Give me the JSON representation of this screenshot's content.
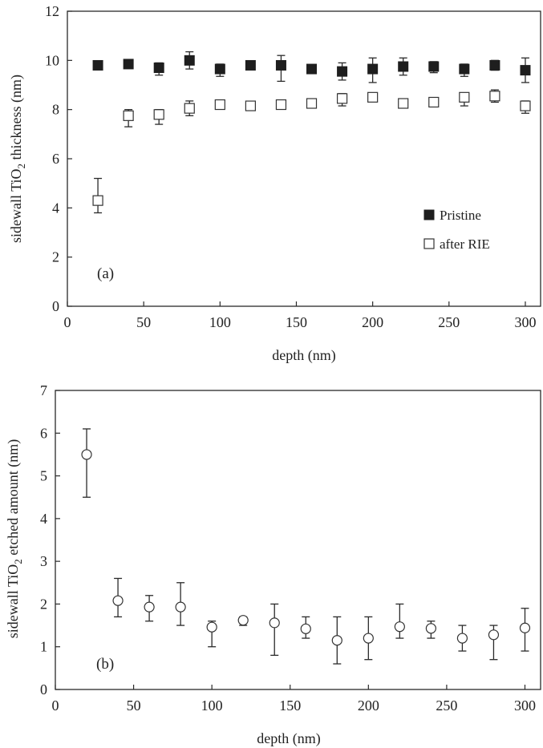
{
  "colors": {
    "ink": "#2a2a2a",
    "marker_filled": "#1e1e1e",
    "marker_open": "#ffffff"
  },
  "chart_data": [
    {
      "type": "scatter",
      "panel_label": "(a)",
      "xlabel": "depth (nm)",
      "ylabel_parts": {
        "before": "sidewall  TiO",
        "sub": "2",
        "after": " thickness (nm)"
      },
      "xlim": [
        0,
        310
      ],
      "ylim": [
        0,
        12
      ],
      "xticks": [
        0,
        50,
        100,
        150,
        200,
        250,
        300
      ],
      "yticks": [
        0,
        2,
        4,
        6,
        8,
        10,
        12
      ],
      "grid": false,
      "legend_position": "right, lower-middle",
      "x": [
        20,
        40,
        60,
        80,
        100,
        120,
        140,
        160,
        180,
        200,
        220,
        240,
        260,
        280,
        300
      ],
      "series": [
        {
          "name": "Pristine",
          "marker": "filled-square",
          "values": [
            9.8,
            9.85,
            9.7,
            10.0,
            9.65,
            9.8,
            9.8,
            9.65,
            9.55,
            9.65,
            9.75,
            9.75,
            9.65,
            9.8,
            9.6
          ],
          "err_plus": [
            0.1,
            0.1,
            0.2,
            0.35,
            0.2,
            0.1,
            0.4,
            0.1,
            0.35,
            0.45,
            0.35,
            0.2,
            0.2,
            0.2,
            0.5
          ],
          "err_minus": [
            0.1,
            0.1,
            0.3,
            0.35,
            0.3,
            0.1,
            0.65,
            0.1,
            0.35,
            0.55,
            0.35,
            0.25,
            0.3,
            0.2,
            0.5
          ]
        },
        {
          "name": "after RIE",
          "marker": "open-square",
          "values": [
            4.3,
            7.75,
            7.8,
            8.05,
            8.2,
            8.15,
            8.2,
            8.25,
            8.45,
            8.5,
            8.25,
            8.3,
            8.5,
            8.55,
            8.15
          ],
          "err_plus": [
            0.9,
            0.25,
            0.2,
            0.3,
            0.15,
            0.1,
            0.15,
            0.15,
            0.2,
            0.1,
            0.1,
            0.15,
            0.15,
            0.25,
            0.2
          ],
          "err_minus": [
            0.5,
            0.45,
            0.4,
            0.3,
            0.15,
            0.1,
            0.15,
            0.15,
            0.3,
            0.1,
            0.1,
            0.15,
            0.35,
            0.25,
            0.3
          ]
        }
      ]
    },
    {
      "type": "scatter",
      "panel_label": "(b)",
      "xlabel": "depth (nm)",
      "ylabel_parts": {
        "before": "sidewall TiO",
        "sub": "2",
        "after": " etched amount (nm)"
      },
      "xlim": [
        0,
        310
      ],
      "ylim": [
        0,
        7
      ],
      "xticks": [
        0,
        50,
        100,
        150,
        200,
        250,
        300
      ],
      "yticks": [
        0,
        1,
        2,
        3,
        4,
        5,
        6,
        7
      ],
      "grid": false,
      "x": [
        20,
        40,
        60,
        80,
        100,
        120,
        140,
        160,
        180,
        200,
        220,
        240,
        260,
        280,
        300
      ],
      "series": [
        {
          "marker": "open-circle",
          "values": [
            5.5,
            2.08,
            1.93,
            1.93,
            1.46,
            1.62,
            1.56,
            1.42,
            1.15,
            1.2,
            1.47,
            1.43,
            1.2,
            1.28,
            1.44
          ],
          "err_plus": [
            0.6,
            0.52,
            0.27,
            0.57,
            0.14,
            0.08,
            0.44,
            0.28,
            0.55,
            0.5,
            0.53,
            0.17,
            0.3,
            0.22,
            0.46
          ],
          "err_minus": [
            1.0,
            0.38,
            0.33,
            0.43,
            0.46,
            0.12,
            0.76,
            0.22,
            0.55,
            0.5,
            0.27,
            0.23,
            0.3,
            0.58,
            0.54
          ]
        }
      ]
    }
  ]
}
